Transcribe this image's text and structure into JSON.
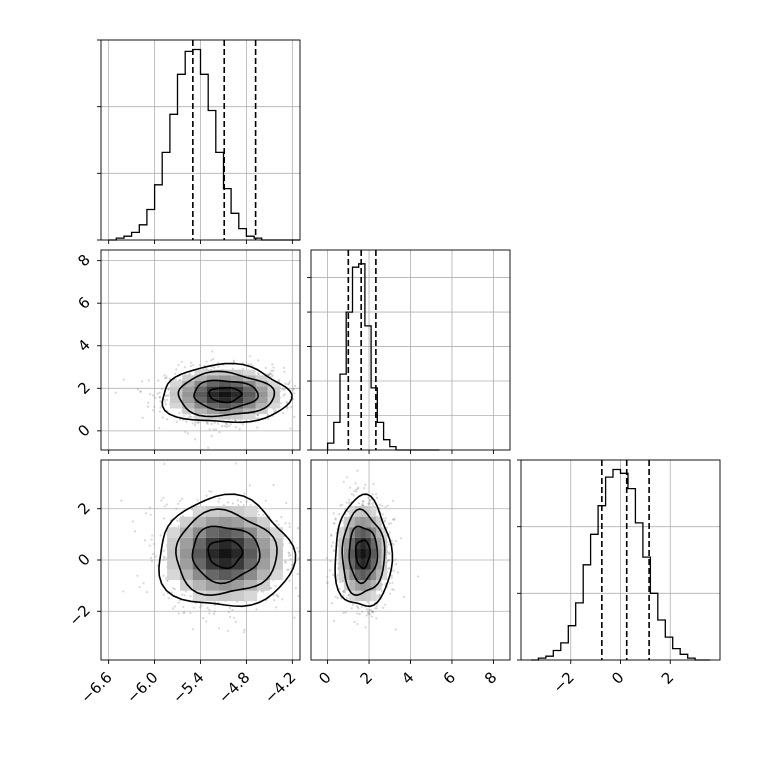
{
  "chart_data": {
    "type": "corner",
    "title": "",
    "grid": true,
    "panels": {
      "p00": {
        "type": "histogram",
        "xlim": [
          -6.7,
          -4.1
        ],
        "bin_edges": [
          -6.6,
          -6.5,
          -6.4,
          -6.3,
          -6.2,
          -6.1,
          -6.0,
          -5.9,
          -5.8,
          -5.7,
          -5.6,
          -5.5,
          -5.4,
          -5.3,
          -5.2,
          -5.1,
          -5.0,
          -4.9,
          -4.8,
          -4.7,
          -4.6,
          -4.5,
          -4.4,
          -4.3,
          -4.2,
          -4.1
        ],
        "counts": [
          0,
          1,
          2,
          4,
          8,
          16,
          29,
          46,
          66,
          87,
          99,
          100,
          87,
          68,
          46,
          27,
          14,
          6,
          2,
          1,
          0,
          0,
          0,
          0,
          0
        ],
        "ylim": [
          0,
          105
        ],
        "quantiles": [
          -5.5,
          -5.09,
          -4.68
        ]
      },
      "p10": {
        "type": "scatter_contour",
        "xlim": [
          -6.7,
          -4.1
        ],
        "ylim": [
          -0.9,
          8.5
        ],
        "center": [
          -5.08,
          1.7
        ],
        "spread": [
          0.38,
          0.62
        ]
      },
      "p11": {
        "type": "histogram",
        "xlim": [
          -0.8,
          8.8
        ],
        "bin_edges": [
          0.0,
          0.3,
          0.6,
          0.9,
          1.2,
          1.5,
          1.8,
          2.1,
          2.4,
          2.7,
          3.0,
          3.3,
          3.6,
          3.9,
          4.2,
          4.5,
          4.8,
          5.1,
          5.4
        ],
        "counts": [
          2,
          8,
          22,
          40,
          53,
          54,
          36,
          18,
          8,
          3,
          1,
          0,
          0,
          0,
          0,
          0,
          0,
          0
        ],
        "ylim": [
          0,
          58
        ],
        "quantiles": [
          1.0,
          1.62,
          2.33
        ]
      },
      "p20": {
        "type": "scatter_contour",
        "xlim": [
          -6.7,
          -4.1
        ],
        "ylim": [
          -3.9,
          3.9
        ],
        "center": [
          -5.08,
          0.25
        ],
        "spread": [
          0.4,
          0.98
        ]
      },
      "p21": {
        "type": "scatter_contour",
        "xlim": [
          -0.8,
          8.8
        ],
        "ylim": [
          -3.9,
          3.9
        ],
        "center": [
          1.7,
          0.25
        ],
        "spread": [
          0.62,
          0.98
        ]
      },
      "p22": {
        "type": "histogram",
        "xlim": [
          -4.0,
          4.0
        ],
        "bin_edges": [
          -3.6,
          -3.3,
          -3.0,
          -2.7,
          -2.4,
          -2.1,
          -1.8,
          -1.5,
          -1.2,
          -0.9,
          -0.6,
          -0.3,
          0.0,
          0.3,
          0.6,
          0.9,
          1.2,
          1.5,
          1.8,
          2.1,
          2.4,
          2.7,
          3.0,
          3.3,
          3.6
        ],
        "counts": [
          0,
          1,
          2,
          5,
          9,
          18,
          30,
          50,
          66,
          81,
          96,
          100,
          98,
          90,
          72,
          54,
          35,
          21,
          12,
          6,
          3,
          1,
          0,
          0
        ],
        "ylim": [
          0,
          105
        ],
        "quantiles": [
          -0.75,
          0.25,
          1.15
        ]
      }
    },
    "tick_labels": {
      "p10_y": [
        "0",
        "2",
        "4",
        "6",
        "8"
      ],
      "p20_y": [
        "−2",
        "0",
        "2"
      ],
      "p20_x": [
        "−6.6",
        "−6.0",
        "−5.4",
        "−4.8",
        "−4.2"
      ],
      "p21_x": [
        "0",
        "2",
        "4",
        "6",
        "8"
      ],
      "p22_x": [
        "−2",
        "0",
        "2"
      ]
    }
  }
}
